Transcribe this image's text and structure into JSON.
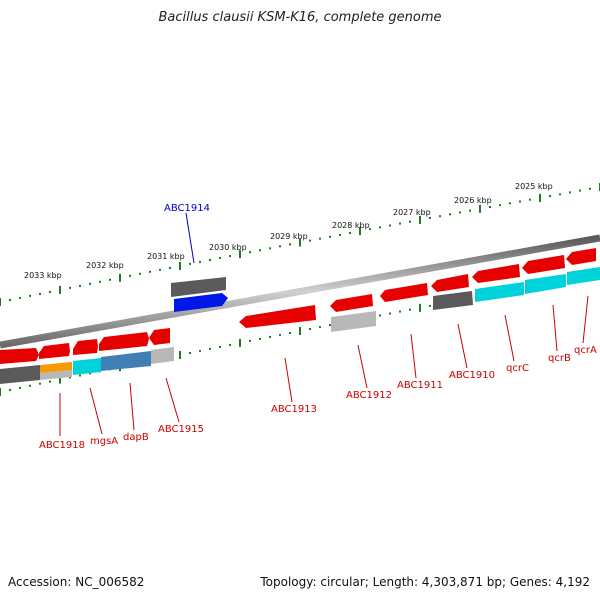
{
  "title": "Bacillus clausii KSM-K16, complete genome",
  "footer": {
    "accession": "Accession: NC_006582",
    "summary": "Topology: circular; Length: 4,303,871 bp; Genes: 4,192"
  },
  "colors": {
    "backbone": "#8a8a8a",
    "ruler": "#1a7f1a",
    "highlight_label": "#0000cc",
    "gene_label": "#cc0000",
    "red": "#e60000",
    "dark_gray": "#5a5a5a",
    "light_gray": "#b8b8b8",
    "cyan": "#00d2dc",
    "steel_blue": "#3f7fb5",
    "orange": "#f59a00",
    "blue": "#0018e6"
  },
  "ruler_labels": [
    "2033 kbp",
    "2032 kbp",
    "2031 kbp",
    "2030 kbp",
    "2029 kbp",
    "2028 kbp",
    "2027 kbp",
    "2026 kbp",
    "2025 kbp"
  ],
  "gene_labels": [
    {
      "name": "ABC1914",
      "color": "highlight_label"
    },
    {
      "name": "ABC1918",
      "color": "gene_label"
    },
    {
      "name": "mgsA",
      "color": "gene_label"
    },
    {
      "name": "dapB",
      "color": "gene_label"
    },
    {
      "name": "ABC1915",
      "color": "gene_label"
    },
    {
      "name": "ABC1913",
      "color": "gene_label"
    },
    {
      "name": "ABC1912",
      "color": "gene_label"
    },
    {
      "name": "ABC1911",
      "color": "gene_label"
    },
    {
      "name": "ABC1910",
      "color": "gene_label"
    },
    {
      "name": "qcrC",
      "color": "gene_label"
    },
    {
      "name": "qcrB",
      "color": "gene_label"
    },
    {
      "name": "qcrA",
      "color": "gene_label"
    }
  ],
  "features": [
    {
      "id": "f-abc1914",
      "track": "outer",
      "color": "blue",
      "dir": "fwd"
    },
    {
      "id": "f-abc1914-gray",
      "track": "outer",
      "color": "dark_gray",
      "dir": "none"
    },
    {
      "id": "f-outer-1",
      "track": "outer",
      "color": "red",
      "dir": "rev"
    },
    {
      "id": "f-outer-2",
      "track": "outer",
      "color": "red",
      "dir": "rev"
    },
    {
      "id": "f-outer-3",
      "track": "outer",
      "color": "red",
      "dir": "rev"
    },
    {
      "id": "f-outer-4",
      "track": "outer",
      "color": "red",
      "dir": "rev"
    },
    {
      "id": "f-outer-5",
      "track": "outer",
      "color": "red",
      "dir": "rev"
    },
    {
      "id": "f-outer-6",
      "track": "outer",
      "color": "red",
      "dir": "rev"
    },
    {
      "id": "f-outer-7",
      "track": "outer",
      "color": "red",
      "dir": "rev"
    },
    {
      "id": "f-outer-8",
      "track": "outer",
      "color": "red",
      "dir": "rev"
    },
    {
      "id": "f-outer-9",
      "track": "outer",
      "color": "red",
      "dir": "rev"
    },
    {
      "id": "f-outer-10",
      "track": "outer",
      "color": "red",
      "dir": "rev"
    },
    {
      "id": "f-outer-11",
      "track": "outer",
      "color": "red",
      "dir": "rev"
    },
    {
      "id": "f-abc1910-gray",
      "track": "inner",
      "color": "dark_gray",
      "dir": "none"
    },
    {
      "id": "f-qcrc-cyan",
      "track": "inner",
      "color": "cyan",
      "dir": "none"
    },
    {
      "id": "f-qcrb-cyan",
      "track": "inner",
      "color": "cyan",
      "dir": "none"
    },
    {
      "id": "f-qcra-cyan",
      "track": "inner",
      "color": "cyan",
      "dir": "none"
    },
    {
      "id": "f-abc1912-gray",
      "track": "inner",
      "color": "light_gray",
      "dir": "none"
    },
    {
      "id": "f-abc1918-gray",
      "track": "inner",
      "color": "dark_gray",
      "dir": "none"
    },
    {
      "id": "f-orange",
      "track": "inner",
      "color": "orange",
      "dir": "none"
    },
    {
      "id": "f-mgsa-cyan",
      "track": "inner",
      "color": "cyan",
      "dir": "none"
    },
    {
      "id": "f-dapb-blue",
      "track": "inner",
      "color": "steel_blue",
      "dir": "none"
    },
    {
      "id": "f-abc1915-gray",
      "track": "inner",
      "color": "light_gray",
      "dir": "none"
    }
  ]
}
